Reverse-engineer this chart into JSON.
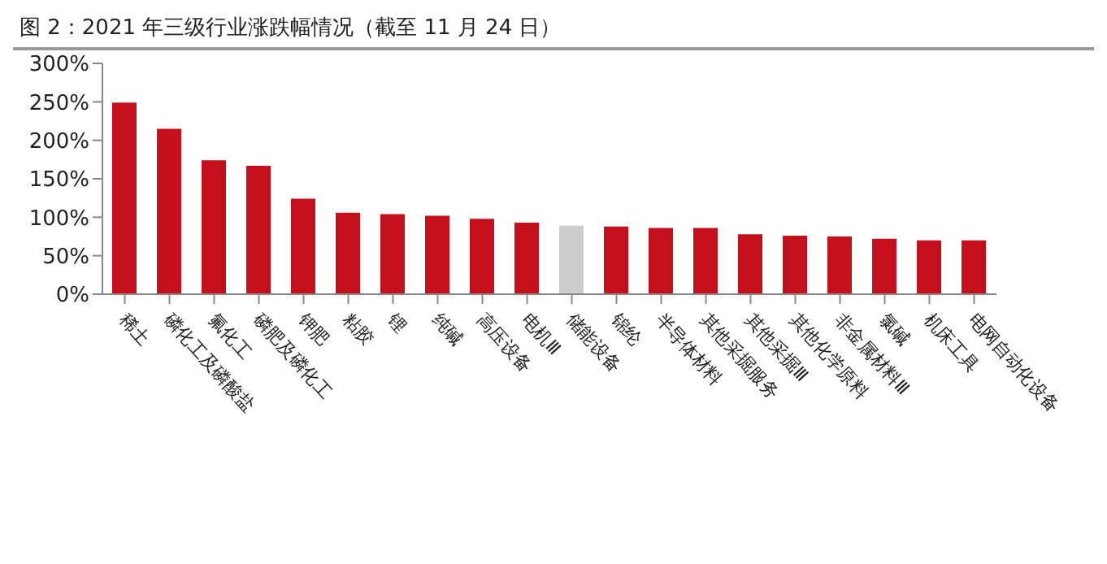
{
  "chart_data": {
    "type": "bar",
    "title": "图 2：2021 年三级行业涨跌幅情况（截至 11 月 24 日）",
    "categories": [
      "稀土",
      "磷化工及磷酸盐",
      "氟化工",
      "磷肥及磷化工",
      "钾肥",
      "粘胶",
      "锂",
      "纯碱",
      "高压设备",
      "电机Ⅲ",
      "储能设备",
      "锦纶",
      "半导体材料",
      "其他采掘服务",
      "其他采掘Ⅲ",
      "其他化学原料",
      "非金属材料Ⅲ",
      "氯碱",
      "机床工具",
      "电网自动化设备"
    ],
    "values": [
      249,
      215,
      174,
      167,
      124,
      106,
      104,
      102,
      98,
      93,
      89,
      88,
      86,
      86,
      78,
      76,
      75,
      72,
      70,
      70
    ],
    "colors": [
      "#c4101d",
      "#c4101d",
      "#c4101d",
      "#c4101d",
      "#c4101d",
      "#c4101d",
      "#c4101d",
      "#c4101d",
      "#c4101d",
      "#c4101d",
      "#cccccc",
      "#c4101d",
      "#c4101d",
      "#c4101d",
      "#c4101d",
      "#c4101d",
      "#c4101d",
      "#c4101d",
      "#c4101d",
      "#c4101d"
    ],
    "ylim": [
      0,
      300
    ],
    "yticks": [
      {
        "value": 0,
        "label": "0%"
      },
      {
        "value": 50,
        "label": "50%"
      },
      {
        "value": 100,
        "label": "100%"
      },
      {
        "value": 150,
        "label": "150%"
      },
      {
        "value": 200,
        "label": "200%"
      },
      {
        "value": 250,
        "label": "250%"
      },
      {
        "value": 300,
        "label": "300%"
      }
    ],
    "grid": false,
    "legend": false
  }
}
